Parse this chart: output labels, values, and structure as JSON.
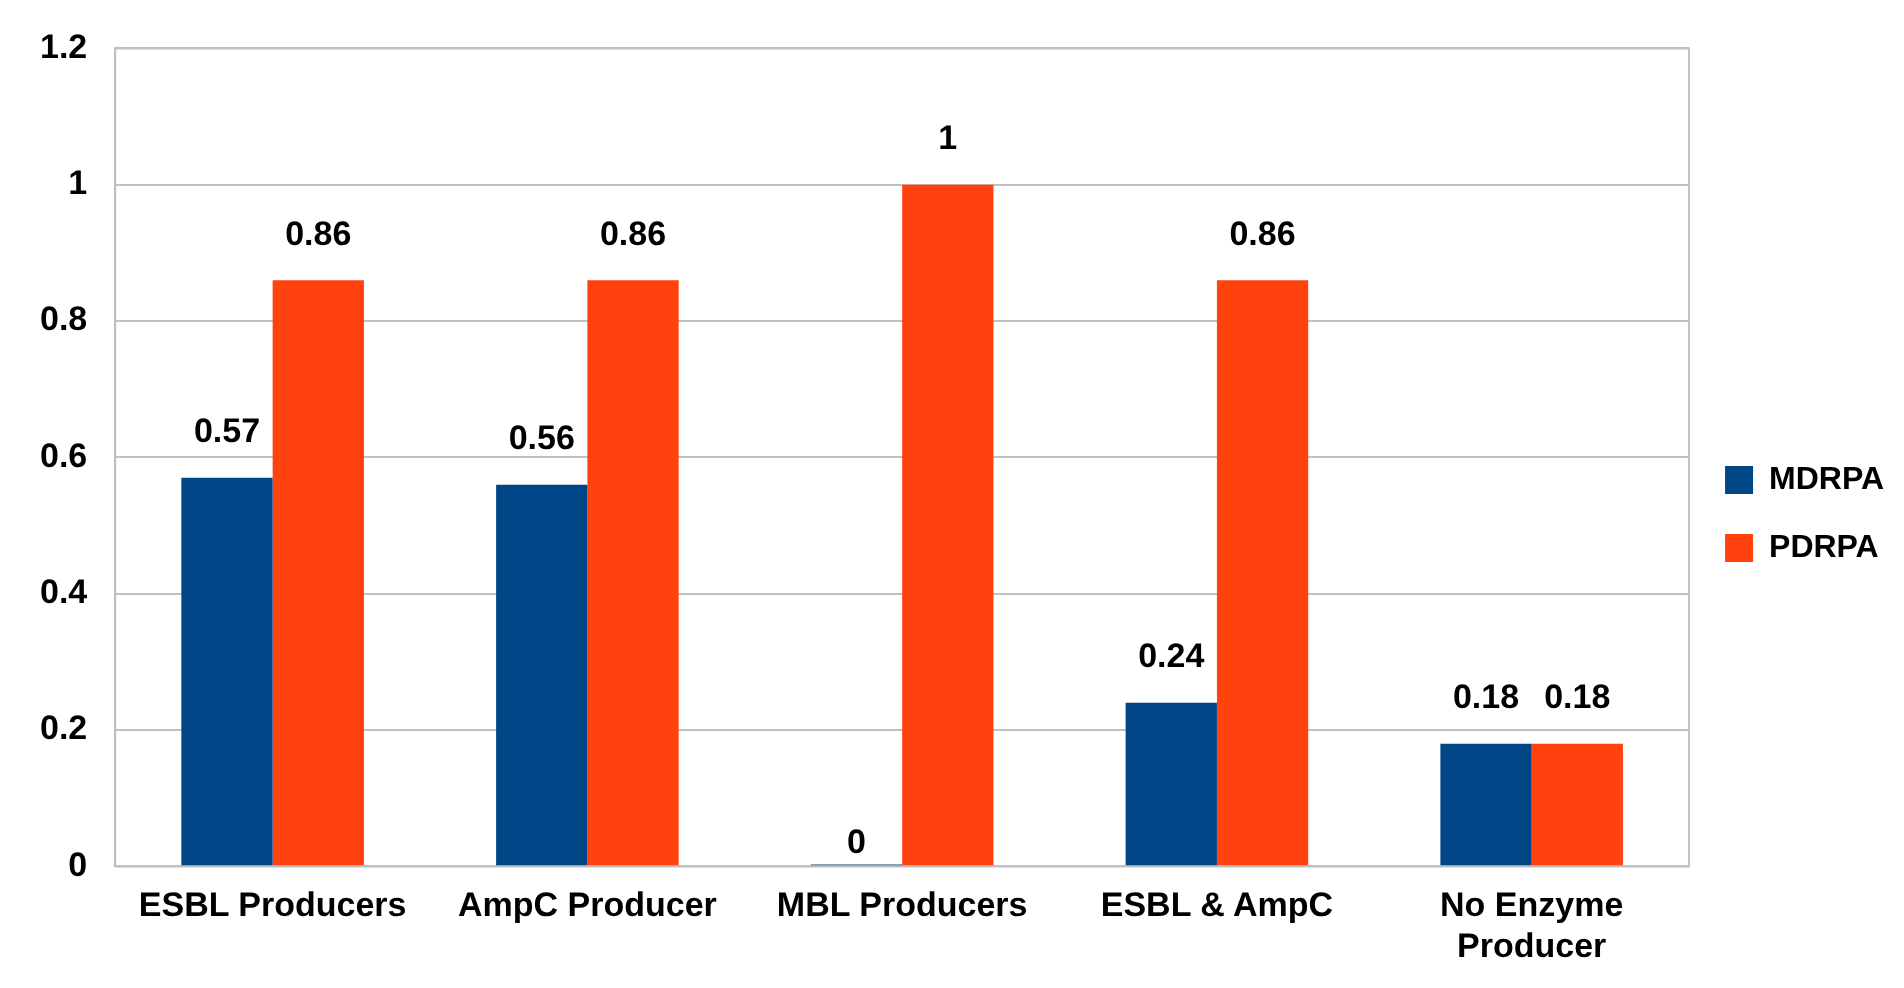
{
  "chart_data": {
    "type": "bar",
    "categories": [
      "ESBL Producers",
      "AmpC Producer",
      "MBL Producers",
      "ESBL & AmpC",
      "No Enzyme Producer"
    ],
    "series": [
      {
        "name": "MDRPA",
        "color": "#004586",
        "values": [
          0.57,
          0.56,
          0,
          0.24,
          0.18
        ]
      },
      {
        "name": "PDRPA",
        "color": "#ff420e",
        "values": [
          0.86,
          0.86,
          1,
          0.86,
          0.18
        ]
      }
    ],
    "ylim": [
      0,
      1.2
    ],
    "yticks": [
      0,
      0.2,
      0.4,
      0.6,
      0.8,
      1,
      1.2
    ],
    "grid": "y",
    "legend": "right",
    "data_labels": true
  }
}
